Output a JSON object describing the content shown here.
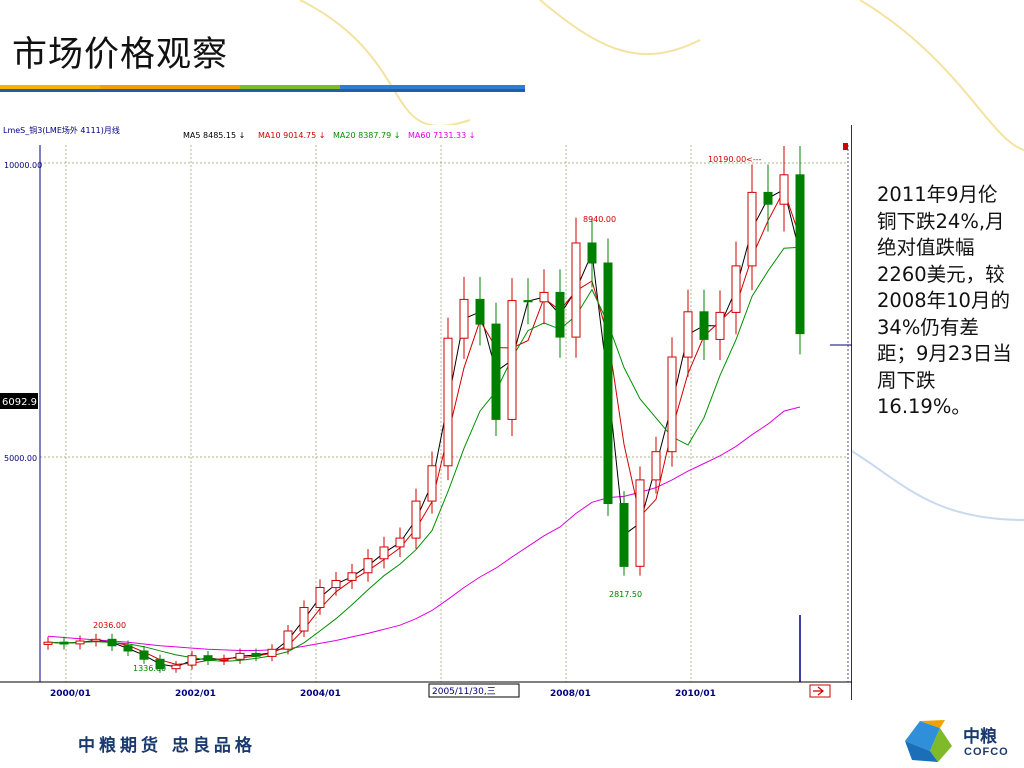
{
  "slide": {
    "title": "市场价格观察",
    "side_text": "2011年9月伦铜下跌24%,月绝对值跌幅2260美元，较2008年10月的34%仍有差距；9月23日当周下跌16.19%。",
    "footer_slogan": "中粮期货 忠良品格",
    "logo_cn": "中粮",
    "logo_en": "COFCO"
  },
  "chart_header": {
    "symbol": "LmeS_铜3(LME场外 4111)月线",
    "ma5": "MA5 8485.15 ↓",
    "ma10": "MA10 9014.75 ↓",
    "ma20": "MA20 8387.79 ↓",
    "ma60": "MA60 7131.33 ↓"
  },
  "chart_data": {
    "type": "candlestick",
    "x_ticks": [
      "2000/01",
      "2002/01",
      "2004/01",
      "2008/01",
      "2010/01"
    ],
    "cursor_label": "2005/11/30,三",
    "y_ticks": [
      "10000.00",
      "5000.00"
    ],
    "price_tag": "6092.9",
    "ylim": [
      2000,
      10500
    ],
    "annotations": {
      "high_2000": "2036.00",
      "low_2001": "1336.00",
      "high_2006": "8940.00",
      "low_2008": "2817.50",
      "high_2011": "10190.00<---"
    },
    "colors": {
      "up": "#d00000",
      "down": "#008000",
      "ma5": "#000000",
      "ma10": "#d00000",
      "ma20": "#009000",
      "ma60": "#e000e0",
      "grid": "#999966",
      "axis": "#000080"
    },
    "x": [
      "2000-01",
      "2000-04",
      "2000-07",
      "2000-10",
      "2001-01",
      "2001-04",
      "2001-07",
      "2001-10",
      "2002-01",
      "2002-04",
      "2002-07",
      "2002-10",
      "2003-01",
      "2003-04",
      "2003-07",
      "2003-10",
      "2004-01",
      "2004-04",
      "2004-07",
      "2004-10",
      "2005-01",
      "2005-04",
      "2005-07",
      "2005-10",
      "2006-01",
      "2006-04",
      "2006-07",
      "2006-10",
      "2007-01",
      "2007-04",
      "2007-07",
      "2007-10",
      "2008-01",
      "2008-04",
      "2008-07",
      "2008-10",
      "2009-01",
      "2009-04",
      "2009-07",
      "2009-10",
      "2010-01",
      "2010-04",
      "2010-07",
      "2010-10",
      "2011-01",
      "2011-04",
      "2011-07",
      "2011-09"
    ],
    "close": [
      1850,
      1820,
      1870,
      1900,
      1790,
      1700,
      1560,
      1400,
      1460,
      1620,
      1540,
      1560,
      1660,
      1610,
      1730,
      2040,
      2440,
      2780,
      2900,
      3030,
      3270,
      3470,
      3620,
      4250,
      4850,
      7020,
      7680,
      7260,
      5640,
      7660,
      7640,
      7800,
      7040,
      8640,
      8300,
      4210,
      3140,
      4610,
      5090,
      6700,
      7470,
      7000,
      7460,
      8250,
      9500,
      9300,
      9800,
      7100
    ],
    "ma60": [
      1950,
      1930,
      1910,
      1890,
      1870,
      1850,
      1820,
      1790,
      1770,
      1750,
      1730,
      1720,
      1710,
      1710,
      1720,
      1740,
      1780,
      1830,
      1880,
      1940,
      2000,
      2070,
      2140,
      2250,
      2390,
      2580,
      2780,
      2960,
      3110,
      3300,
      3480,
      3660,
      3810,
      4040,
      4230,
      4310,
      4330,
      4400,
      4480,
      4610,
      4760,
      4890,
      5020,
      5180,
      5380,
      5560,
      5780,
      5850
    ]
  }
}
